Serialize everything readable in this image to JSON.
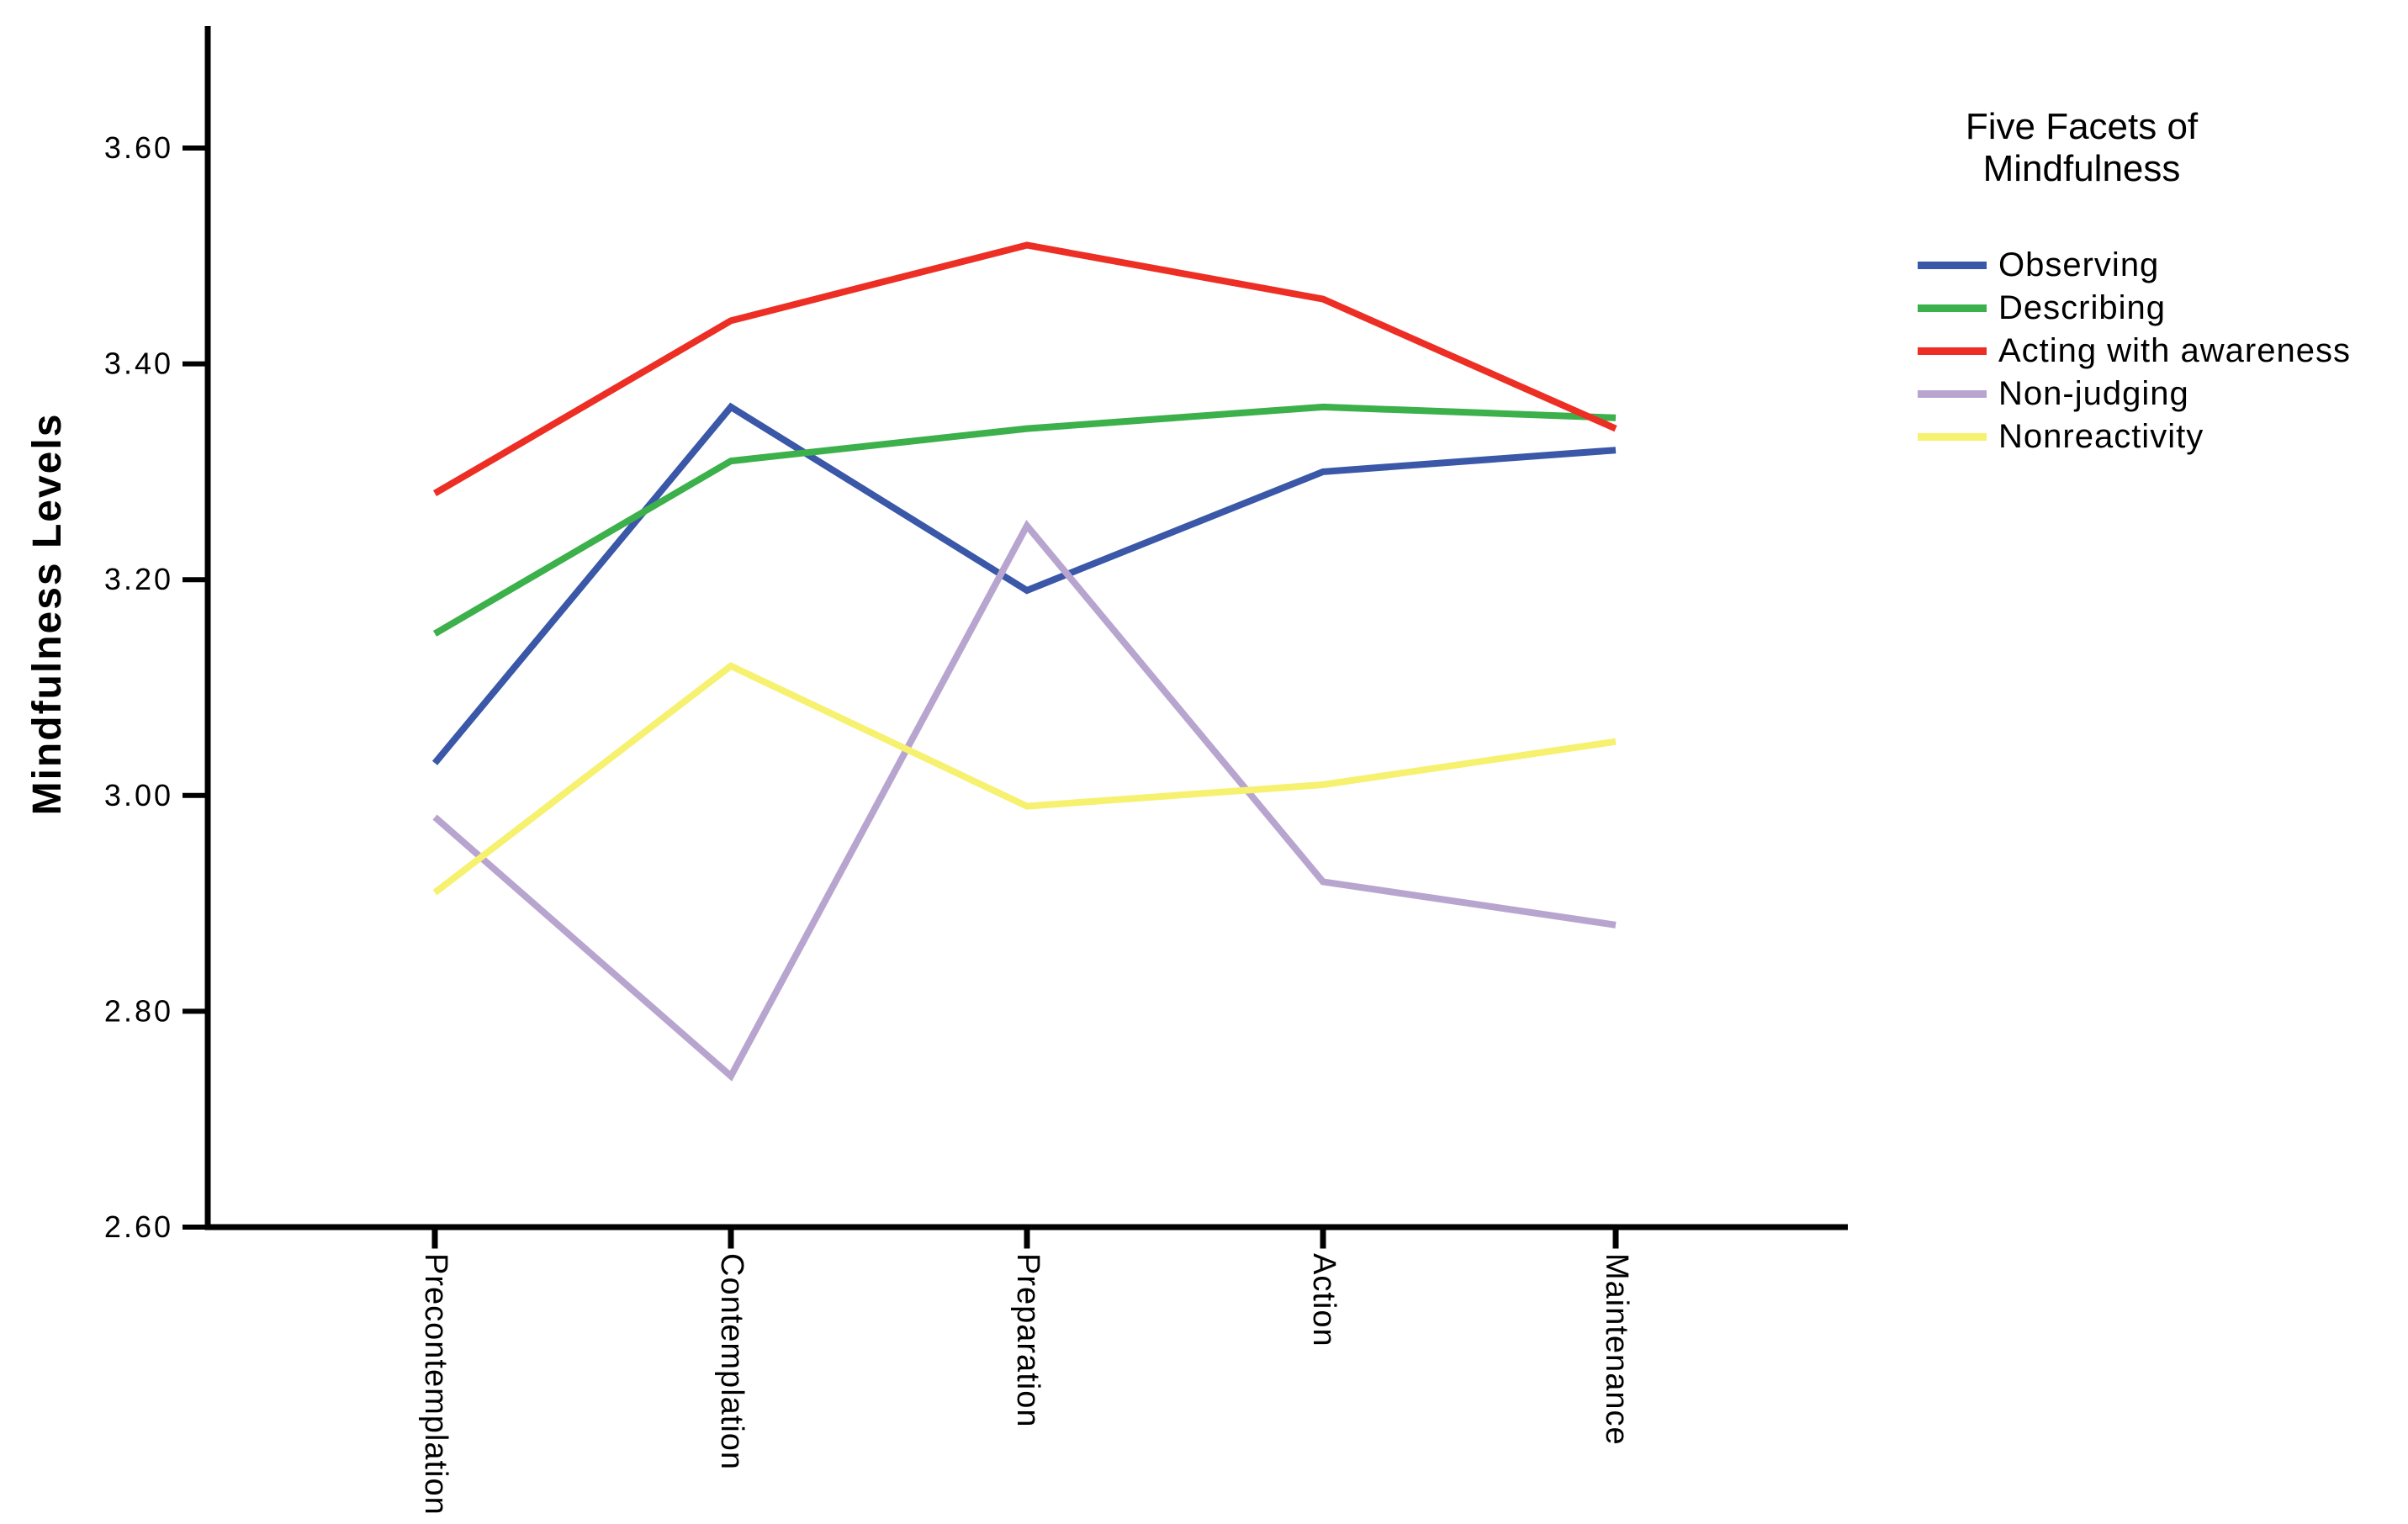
{
  "page": {
    "background": "#ffffff",
    "text_color": "#000000"
  },
  "chart_data": {
    "type": "line",
    "title": "",
    "xlabel": "",
    "ylabel": "Mindfulness Levels",
    "categories": [
      "Precontemplation",
      "Contemplation",
      "Preparation",
      "Action",
      "Maintenance"
    ],
    "series": [
      {
        "name": "Observing",
        "color": "#3A57A8",
        "values": [
          3.03,
          3.36,
          3.19,
          3.3,
          3.32
        ]
      },
      {
        "name": "Describing",
        "color": "#3CB04A",
        "values": [
          3.15,
          3.31,
          3.34,
          3.36,
          3.35
        ]
      },
      {
        "name": "Acting with awareness",
        "color": "#ED2E24",
        "values": [
          3.28,
          3.44,
          3.51,
          3.46,
          3.34
        ]
      },
      {
        "name": "Non-judging",
        "color": "#B8A5CF",
        "values": [
          2.98,
          2.74,
          3.25,
          2.92,
          2.88
        ]
      },
      {
        "name": "Nonreactivity",
        "color": "#F6F16E",
        "values": [
          2.91,
          3.12,
          2.99,
          3.01,
          3.05
        ]
      }
    ],
    "yticks": [
      3.6,
      3.4,
      3.2,
      3.0,
      2.8,
      2.6
    ],
    "ytick_labels": [
      "3.60",
      "3.40",
      "3.20",
      "3.00",
      "2.80",
      "2.60"
    ],
    "ylim": [
      2.6,
      3.71
    ],
    "grid": false,
    "axis_color": "#000000",
    "legend": {
      "position": "right",
      "title_line1": "Five Facets of",
      "title_line2": "Mindfulness"
    }
  }
}
